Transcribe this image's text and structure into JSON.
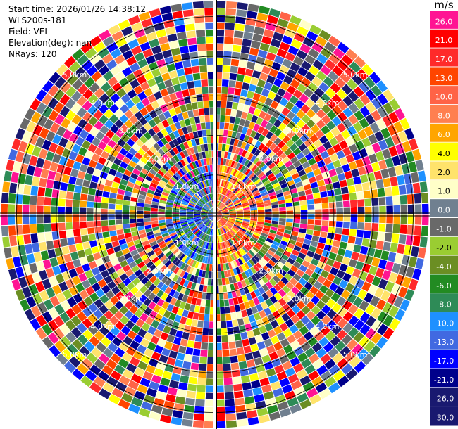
{
  "header": {
    "start_time": "Start time: 2026/01/26 14:38:12",
    "instrument": "WLS200s-181",
    "field": "Field: VEL",
    "elevation": "Elevation(deg): nan",
    "nrays": "NRays: 120"
  },
  "chart_data": {
    "type": "heatmap",
    "projection": "polar",
    "field": "VEL",
    "n_rays": 120,
    "range_rings_km": [
      1.0,
      2.0,
      3.0,
      4.0,
      5.0
    ],
    "ring_labels": [
      "1.0km",
      "2.0km",
      "3.0km",
      "4.0km",
      "5.0km"
    ],
    "max_range_km": 5.4,
    "near_field_pattern": {
      "max_range_km": 1.3,
      "west_values": [
        -17.0,
        -13.0,
        -10.0,
        -8.0,
        -6.0
      ],
      "east_values": [
        4.0,
        6.0,
        8.0,
        10.0,
        13.0,
        17.0
      ]
    },
    "colorbar": {
      "unit": "m/s",
      "ticks": [
        "26.0",
        "21.0",
        "17.0",
        "13.0",
        "10.0",
        "8.0",
        "6.0",
        "4.0",
        "2.0",
        "1.0",
        "0.0",
        "-1.0",
        "-2.0",
        "-4.0",
        "-6.0",
        "-8.0",
        "-10.0",
        "-13.0",
        "-17.0",
        "-21.0",
        "-26.0",
        "-30.0"
      ],
      "colors": [
        "#ff1493",
        "#ff0000",
        "#ff2a2a",
        "#ff4500",
        "#ff6347",
        "#ff7f50",
        "#ffa500",
        "#ffff00",
        "#ffe36b",
        "#ffffc8",
        "#708090",
        "#696969",
        "#9acd32",
        "#6b8e23",
        "#228b22",
        "#2e8b57",
        "#1e90ff",
        "#4169e1",
        "#0000ff",
        "#00008b",
        "#191970",
        "#191970"
      ]
    }
  }
}
